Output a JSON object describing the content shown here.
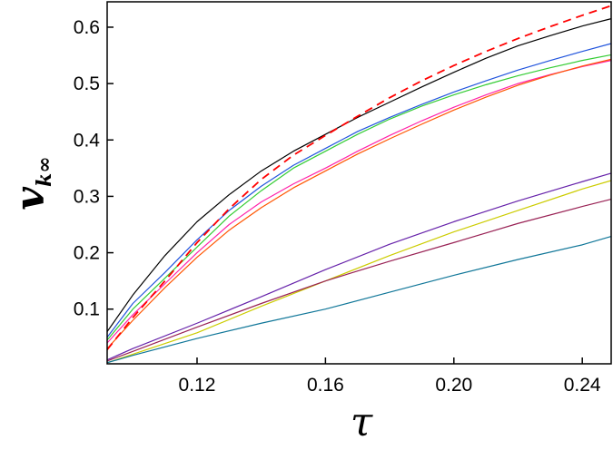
{
  "chart_data": {
    "type": "line",
    "title": "",
    "xlabel": "τ",
    "ylabel": {
      "main": "v",
      "sub": "k∞"
    },
    "xlim": [
      0.092,
      0.249
    ],
    "ylim": [
      0.003,
      0.645
    ],
    "xticks": [
      0.12,
      0.16,
      0.2,
      0.24
    ],
    "xtick_labels": [
      "0.12",
      "0.16",
      "0.20",
      "0.24"
    ],
    "yticks": [
      0.1,
      0.2,
      0.3,
      0.4,
      0.5,
      0.6
    ],
    "ytick_labels": [
      "0.1",
      "0.2",
      "0.3",
      "0.4",
      "0.5",
      "0.6"
    ],
    "grid": false,
    "legend": "none",
    "series": [
      {
        "color": "#000000",
        "dashed": false,
        "x": [
          0.092,
          0.1,
          0.11,
          0.12,
          0.13,
          0.14,
          0.15,
          0.16,
          0.17,
          0.18,
          0.19,
          0.2,
          0.21,
          0.22,
          0.23,
          0.24,
          0.249
        ],
        "y": [
          0.06,
          0.125,
          0.195,
          0.255,
          0.303,
          0.345,
          0.38,
          0.41,
          0.44,
          0.467,
          0.494,
          0.52,
          0.545,
          0.567,
          0.585,
          0.602,
          0.615
        ]
      },
      {
        "color": "#2255dd",
        "dashed": false,
        "x": [
          0.092,
          0.1,
          0.11,
          0.12,
          0.13,
          0.14,
          0.15,
          0.16,
          0.17,
          0.18,
          0.19,
          0.2,
          0.21,
          0.22,
          0.23,
          0.24,
          0.249
        ],
        "y": [
          0.05,
          0.11,
          0.165,
          0.223,
          0.275,
          0.318,
          0.355,
          0.385,
          0.415,
          0.44,
          0.463,
          0.485,
          0.505,
          0.524,
          0.541,
          0.557,
          0.571
        ]
      },
      {
        "color": "#33cc33",
        "dashed": false,
        "x": [
          0.092,
          0.1,
          0.11,
          0.12,
          0.13,
          0.14,
          0.15,
          0.16,
          0.17,
          0.18,
          0.19,
          0.2,
          0.21,
          0.22,
          0.23,
          0.24,
          0.249
        ],
        "y": [
          0.045,
          0.1,
          0.155,
          0.21,
          0.265,
          0.31,
          0.35,
          0.38,
          0.41,
          0.437,
          0.46,
          0.48,
          0.498,
          0.514,
          0.528,
          0.541,
          0.551
        ]
      },
      {
        "color": "#ff22aa",
        "dashed": false,
        "x": [
          0.092,
          0.1,
          0.11,
          0.12,
          0.13,
          0.14,
          0.15,
          0.16,
          0.17,
          0.18,
          0.19,
          0.2,
          0.21,
          0.22,
          0.23,
          0.24,
          0.249
        ],
        "y": [
          0.04,
          0.09,
          0.145,
          0.2,
          0.25,
          0.29,
          0.322,
          0.35,
          0.38,
          0.408,
          0.434,
          0.458,
          0.48,
          0.5,
          0.516,
          0.53,
          0.541
        ]
      },
      {
        "color": "#ff5500",
        "dashed": false,
        "x": [
          0.092,
          0.1,
          0.11,
          0.12,
          0.13,
          0.14,
          0.15,
          0.16,
          0.17,
          0.18,
          0.19,
          0.2,
          0.21,
          0.22,
          0.23,
          0.24,
          0.249
        ],
        "y": [
          0.03,
          0.08,
          0.138,
          0.192,
          0.24,
          0.28,
          0.315,
          0.345,
          0.375,
          0.402,
          0.428,
          0.453,
          0.476,
          0.497,
          0.515,
          0.531,
          0.543
        ]
      },
      {
        "color": "#ff0000",
        "dashed": true,
        "x": [
          0.092,
          0.1,
          0.11,
          0.12,
          0.13,
          0.14,
          0.15,
          0.16,
          0.17,
          0.18,
          0.19,
          0.2,
          0.21,
          0.22,
          0.23,
          0.24,
          0.249
        ],
        "y": [
          0.028,
          0.085,
          0.15,
          0.218,
          0.278,
          0.33,
          0.373,
          0.408,
          0.442,
          0.475,
          0.505,
          0.532,
          0.557,
          0.58,
          0.601,
          0.621,
          0.638
        ]
      },
      {
        "color": "#6622aa",
        "dashed": false,
        "x": [
          0.092,
          0.1,
          0.12,
          0.14,
          0.16,
          0.18,
          0.2,
          0.22,
          0.24,
          0.249
        ],
        "y": [
          0.01,
          0.03,
          0.075,
          0.122,
          0.17,
          0.215,
          0.255,
          0.292,
          0.326,
          0.341
        ]
      },
      {
        "color": "#cccc00",
        "dashed": false,
        "x": [
          0.092,
          0.1,
          0.12,
          0.14,
          0.16,
          0.18,
          0.2,
          0.22,
          0.24,
          0.249
        ],
        "y": [
          0.005,
          0.02,
          0.058,
          0.105,
          0.15,
          0.195,
          0.237,
          0.275,
          0.313,
          0.328
        ]
      },
      {
        "color": "#992255",
        "dashed": false,
        "x": [
          0.092,
          0.1,
          0.12,
          0.14,
          0.16,
          0.18,
          0.2,
          0.22,
          0.24,
          0.249
        ],
        "y": [
          0.008,
          0.025,
          0.068,
          0.11,
          0.15,
          0.185,
          0.218,
          0.252,
          0.282,
          0.295
        ]
      },
      {
        "color": "#117799",
        "dashed": false,
        "x": [
          0.092,
          0.1,
          0.12,
          0.14,
          0.16,
          0.18,
          0.2,
          0.22,
          0.24,
          0.249
        ],
        "y": [
          0.005,
          0.018,
          0.048,
          0.075,
          0.1,
          0.13,
          0.16,
          0.188,
          0.214,
          0.229
        ]
      }
    ]
  }
}
